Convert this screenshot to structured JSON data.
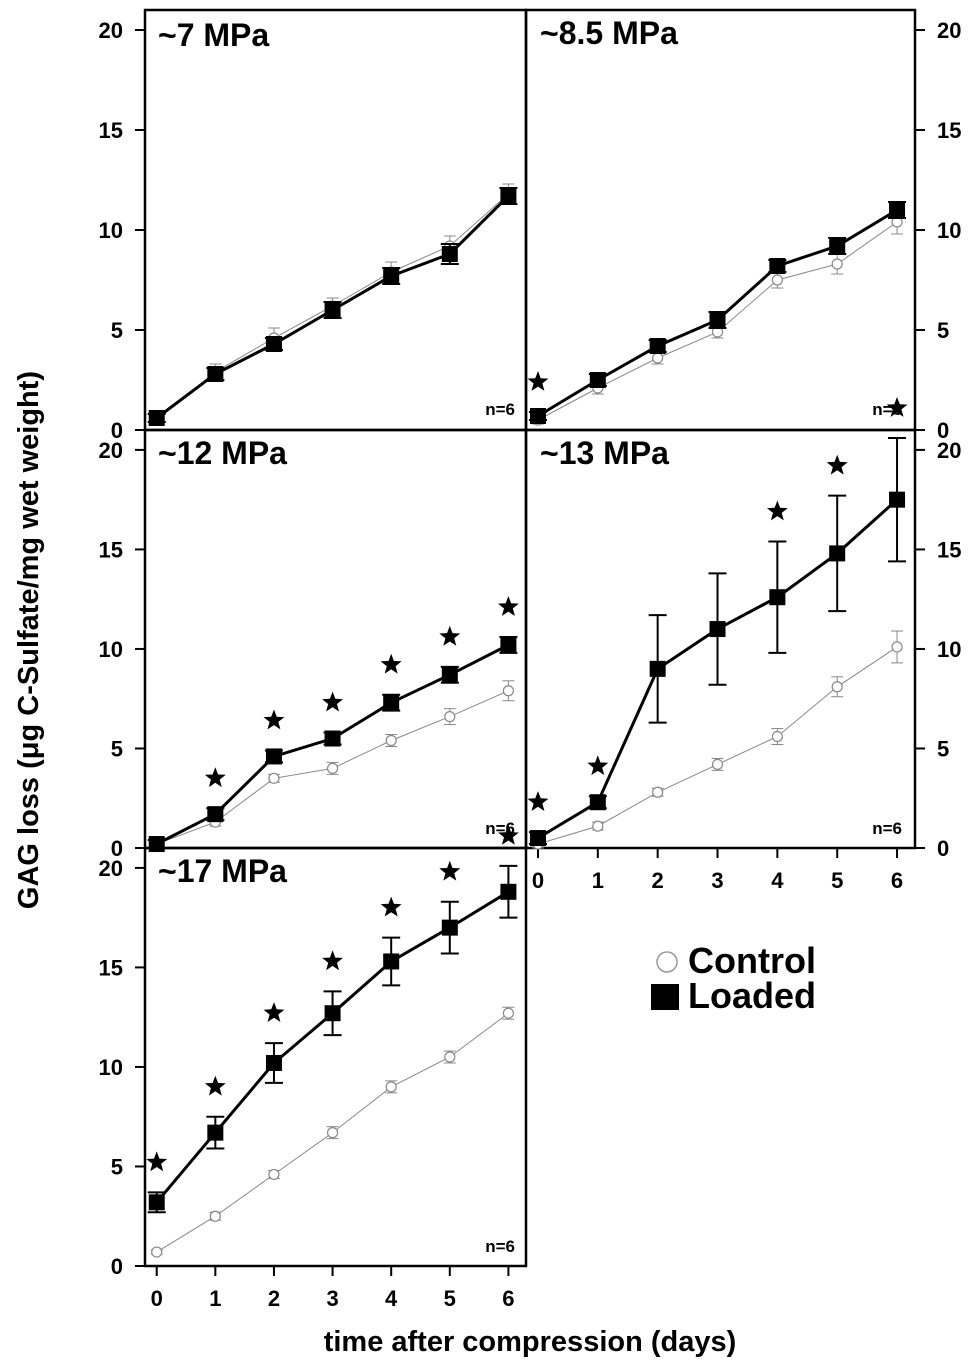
{
  "figure": {
    "ylabel": "GAG loss (μg C-Sulfate/mg wet weight)",
    "xlabel": "time after compression (days)",
    "legend": {
      "items": [
        "Control",
        "Loaded"
      ]
    }
  },
  "chart_data": [
    {
      "type": "line",
      "title": "~7 MPa",
      "annotation": "n=6",
      "x": [
        0,
        1,
        2,
        3,
        4,
        5,
        6
      ],
      "ylim": [
        0,
        21
      ],
      "xlim": [
        -0.2,
        6.3
      ],
      "yticks": [
        0,
        5,
        10,
        15,
        20
      ],
      "series": [
        {
          "name": "Control",
          "values": [
            0.5,
            2.9,
            4.6,
            6.2,
            7.9,
            9.2,
            11.8
          ],
          "errors": [
            0.2,
            0.4,
            0.5,
            0.4,
            0.5,
            0.5,
            0.5
          ]
        },
        {
          "name": "Loaded",
          "values": [
            0.6,
            2.8,
            4.3,
            6.0,
            7.7,
            8.8,
            11.7
          ],
          "errors": [
            0.2,
            0.3,
            0.3,
            0.4,
            0.4,
            0.5,
            0.4
          ]
        }
      ],
      "significant": [
        false,
        false,
        false,
        false,
        false,
        false,
        false
      ]
    },
    {
      "type": "line",
      "title": "~8.5 MPa",
      "annotation": "n=6",
      "x": [
        0,
        1,
        2,
        3,
        4,
        5,
        6
      ],
      "ylim": [
        0,
        21
      ],
      "xlim": [
        -0.2,
        6.3
      ],
      "yticks": [
        0,
        5,
        10,
        15,
        20
      ],
      "series": [
        {
          "name": "Control",
          "values": [
            0.5,
            2.1,
            3.6,
            4.9,
            7.5,
            8.3,
            10.4
          ],
          "errors": [
            0.2,
            0.3,
            0.3,
            0.3,
            0.4,
            0.5,
            0.6
          ]
        },
        {
          "name": "Loaded",
          "values": [
            0.7,
            2.5,
            4.2,
            5.5,
            8.2,
            9.2,
            11.0
          ],
          "errors": [
            0.2,
            0.3,
            0.3,
            0.4,
            0.3,
            0.4,
            0.4
          ]
        }
      ],
      "significant": [
        true,
        false,
        false,
        false,
        false,
        false,
        false
      ]
    },
    {
      "type": "line",
      "title": "~12 MPa",
      "annotation": "n=6",
      "x": [
        0,
        1,
        2,
        3,
        4,
        5,
        6
      ],
      "ylim": [
        0,
        21
      ],
      "xlim": [
        -0.2,
        6.3
      ],
      "yticks": [
        0,
        5,
        10,
        15,
        20
      ],
      "series": [
        {
          "name": "Control",
          "values": [
            0.2,
            1.3,
            3.5,
            4.0,
            5.4,
            6.6,
            7.9
          ],
          "errors": [
            0.2,
            0.2,
            0.2,
            0.3,
            0.3,
            0.4,
            0.5
          ]
        },
        {
          "name": "Loaded",
          "values": [
            0.2,
            1.7,
            4.6,
            5.5,
            7.3,
            8.7,
            10.2
          ],
          "errors": [
            0.2,
            0.3,
            0.3,
            0.3,
            0.4,
            0.4,
            0.4
          ]
        }
      ],
      "significant": [
        false,
        true,
        true,
        true,
        true,
        true,
        true
      ]
    },
    {
      "type": "line",
      "title": "~13 MPa",
      "annotation": "n=6",
      "x": [
        0,
        1,
        2,
        3,
        4,
        5,
        6
      ],
      "ylim": [
        0,
        21
      ],
      "xlim": [
        -0.2,
        6.3
      ],
      "yticks": [
        0,
        5,
        10,
        15,
        20
      ],
      "series": [
        {
          "name": "Control",
          "values": [
            0.2,
            1.1,
            2.8,
            4.2,
            5.6,
            8.1,
            10.1
          ],
          "errors": [
            0.2,
            0.2,
            0.2,
            0.3,
            0.4,
            0.5,
            0.8
          ]
        },
        {
          "name": "Loaded",
          "values": [
            0.5,
            2.3,
            9.0,
            11.0,
            12.6,
            14.8,
            17.5
          ],
          "errors": [
            0.3,
            0.3,
            2.7,
            2.8,
            2.8,
            2.9,
            3.1
          ]
        }
      ],
      "significant": [
        true,
        true,
        false,
        false,
        true,
        true,
        true
      ]
    },
    {
      "type": "line",
      "title": "~17 MPa",
      "annotation": "n=6",
      "x": [
        0,
        1,
        2,
        3,
        4,
        5,
        6
      ],
      "ylim": [
        0,
        21
      ],
      "xlim": [
        -0.2,
        6.3
      ],
      "yticks": [
        0,
        5,
        10,
        15,
        20
      ],
      "xticks": [
        0,
        1,
        2,
        3,
        4,
        5,
        6
      ],
      "series": [
        {
          "name": "Control",
          "values": [
            0.7,
            2.5,
            4.6,
            6.7,
            9.0,
            10.5,
            12.7
          ],
          "errors": [
            0.1,
            0.2,
            0.2,
            0.3,
            0.3,
            0.3,
            0.3
          ]
        },
        {
          "name": "Loaded",
          "values": [
            3.2,
            6.7,
            10.2,
            12.7,
            15.3,
            17.0,
            18.8
          ],
          "errors": [
            0.5,
            0.8,
            1.0,
            1.1,
            1.2,
            1.3,
            1.3
          ]
        }
      ],
      "significant": [
        true,
        true,
        true,
        true,
        true,
        true,
        true
      ]
    }
  ]
}
